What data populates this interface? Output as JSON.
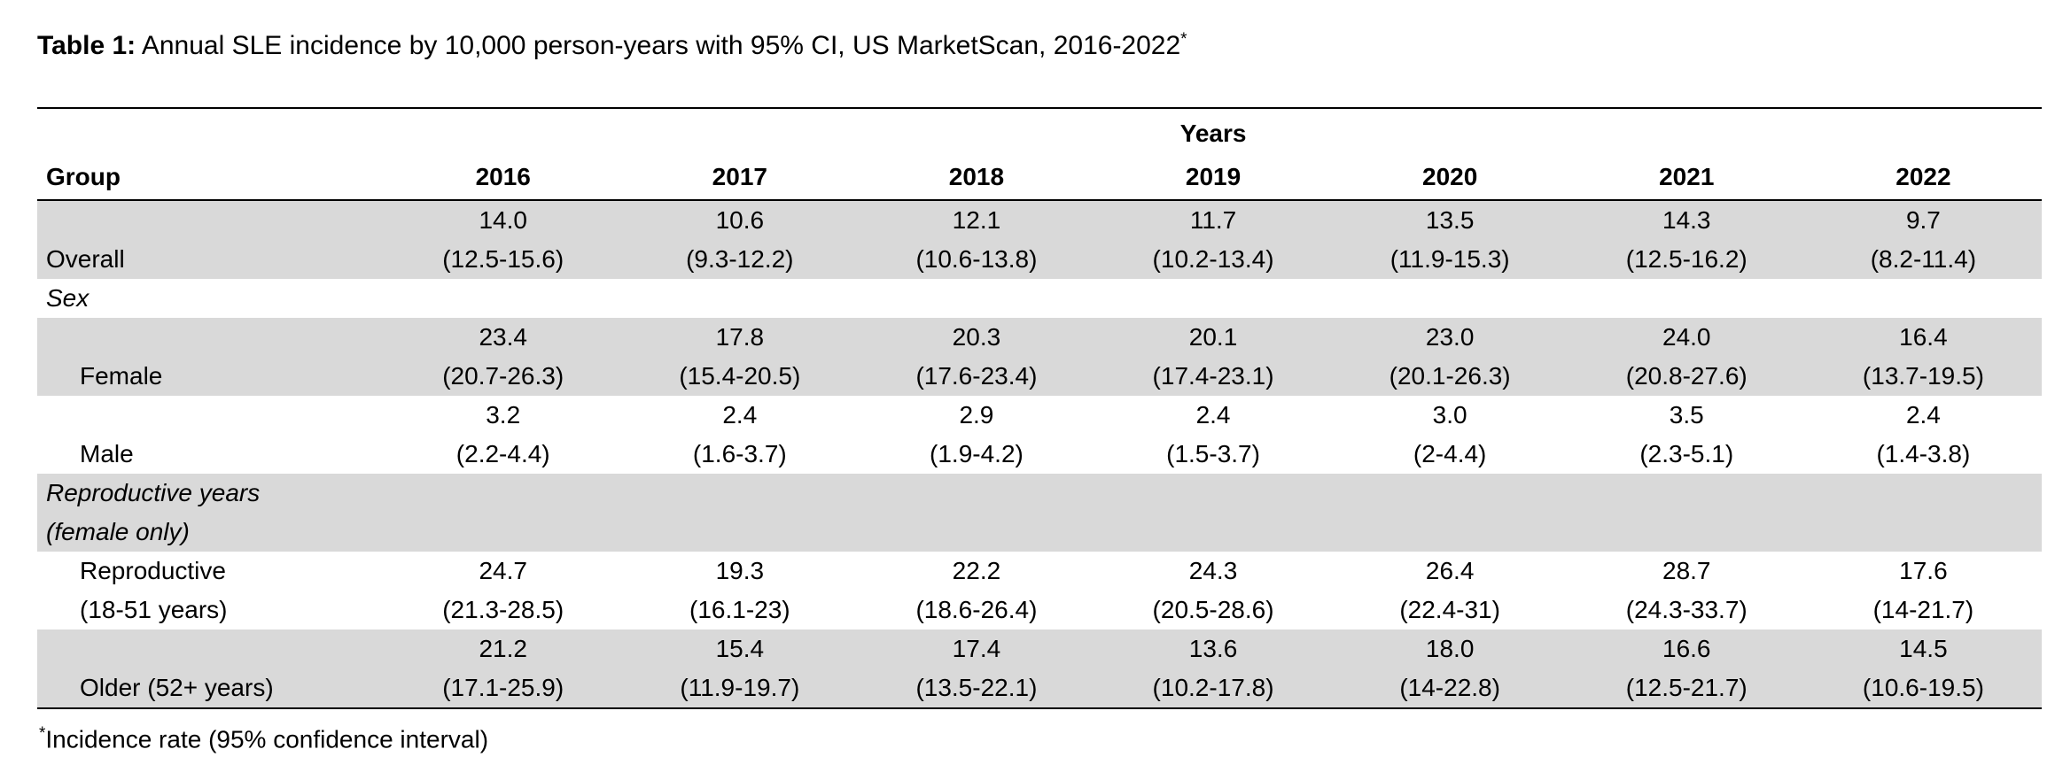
{
  "title": {
    "prefix": "Table 1:",
    "text": "Annual SLE incidence by 10,000 person-years with 95% CI, US MarketScan, 2016-2022",
    "asterisk": "*"
  },
  "table": {
    "years_header": "Years",
    "group_header": "Group",
    "year_columns": [
      "2016",
      "2017",
      "2018",
      "2019",
      "2020",
      "2021",
      "2022"
    ],
    "rows": [
      {
        "type": "data",
        "label": "Overall",
        "shaded": true,
        "values": [
          "14.0",
          "10.6",
          "12.1",
          "11.7",
          "13.5",
          "14.3",
          "9.7"
        ],
        "cis": [
          "(12.5-15.6)",
          "(9.3-12.2)",
          "(10.6-13.8)",
          "(10.2-13.4)",
          "(11.9-15.3)",
          "(12.5-16.2)",
          "(8.2-11.4)"
        ]
      },
      {
        "type": "section",
        "label": "Sex",
        "shaded": false
      },
      {
        "type": "data",
        "label": "Female",
        "shaded": true,
        "values": [
          "23.4",
          "17.8",
          "20.3",
          "20.1",
          "23.0",
          "24.0",
          "16.4"
        ],
        "cis": [
          "(20.7-26.3)",
          "(15.4-20.5)",
          "(17.6-23.4)",
          "(17.4-23.1)",
          "(20.1-26.3)",
          "(20.8-27.6)",
          "(13.7-19.5)"
        ]
      },
      {
        "type": "data",
        "label": "Male",
        "shaded": false,
        "values": [
          "3.2",
          "2.4",
          "2.9",
          "2.4",
          "3.0",
          "3.5",
          "2.4"
        ],
        "cis": [
          "(2.2-4.4)",
          "(1.6-3.7)",
          "(1.9-4.2)",
          "(1.5-3.7)",
          "(2-4.4)",
          "(2.3-5.1)",
          "(1.4-3.8)"
        ]
      },
      {
        "type": "section",
        "label": "Reproductive years",
        "label2": "(female only)",
        "shaded": true
      },
      {
        "type": "data",
        "label": "Reproductive",
        "label2": "(18-51 years)",
        "shaded": false,
        "values": [
          "24.7",
          "19.3",
          "22.2",
          "24.3",
          "26.4",
          "28.7",
          "17.6"
        ],
        "cis": [
          "(21.3-28.5)",
          "(16.1-23)",
          "(18.6-26.4)",
          "(20.5-28.6)",
          "(22.4-31)",
          "(24.3-33.7)",
          "(14-21.7)"
        ]
      },
      {
        "type": "data",
        "label": "Older (52+ years)",
        "shaded": true,
        "values": [
          "21.2",
          "15.4",
          "17.4",
          "13.6",
          "18.0",
          "16.6",
          "14.5"
        ],
        "cis": [
          "(17.1-25.9)",
          "(11.9-19.7)",
          "(13.5-22.1)",
          "(10.2-17.8)",
          "(14-22.8)",
          "(12.5-21.7)",
          "(10.6-19.5)"
        ]
      }
    ]
  },
  "footnote": {
    "asterisk": "*",
    "text": "Incidence rate (95% confidence interval)"
  },
  "colors": {
    "row_shade": "#d9d9d9",
    "rule": "#000000",
    "background": "#ffffff",
    "text": "#000000"
  }
}
